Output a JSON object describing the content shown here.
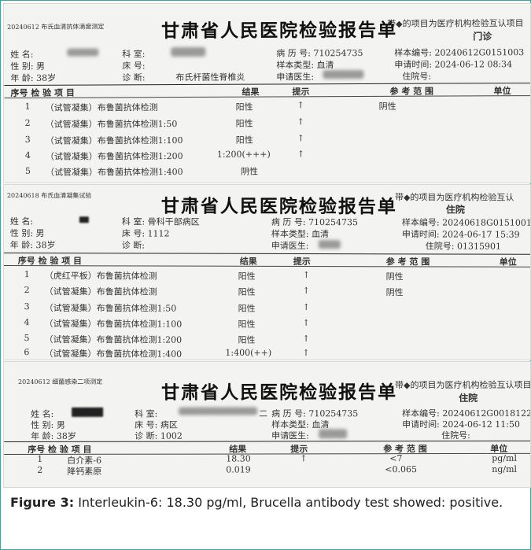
{
  "reports": [
    {
      "code": "20240612 布氏血清抗体滴度测定",
      "hospital": "甘肃省人民医院检验报告单",
      "note": "带◆的项目为医疗机构检验互认项目",
      "dept_type": "门诊",
      "name_label": "姓 名:",
      "gender_label": "性 别: 男",
      "age_label": "年 龄: 38岁",
      "room_label": "科 室:",
      "bed_label": "床 号:",
      "diag_label": "诊 断:",
      "diag_value": "布氏杆菌性脊椎炎",
      "record_label": "病 历 号: 710254735",
      "sample_type": "样本类型: 血清",
      "doctor_label": "申请医生:",
      "sample_no": "样本编号: 20240612G0151003",
      "apply_time": "申请时间: 2024-06-12 08:34",
      "inpatient_no": "住院号:",
      "headers": {
        "no_item": "序号 检 验 项 目",
        "result": "结果",
        "hint": "提示",
        "ref": "参 考 范 围",
        "unit": "单位"
      },
      "rows": [
        {
          "no": "1",
          "item": "（试管凝集）布鲁菌抗体检测",
          "result": "阳性",
          "hint": "↑",
          "ref": "阴性"
        },
        {
          "no": "2",
          "item": "（试管凝集）布鲁菌抗体检测1:50",
          "result": "阳性",
          "hint": "↑",
          "ref": ""
        },
        {
          "no": "3",
          "item": "（试管凝集）布鲁菌抗体检测1:100",
          "result": "阳性",
          "hint": "↑",
          "ref": ""
        },
        {
          "no": "4",
          "item": "（试管凝集）布鲁菌抗体检测1:200",
          "result": "1:200(+++)",
          "hint": "↑",
          "ref": ""
        },
        {
          "no": "5",
          "item": "（试管凝集）布鲁菌抗体检测1:400",
          "result": "阴性",
          "hint": "",
          "ref": ""
        }
      ]
    },
    {
      "code": "20240618 布氏血清凝集试验",
      "hospital": "甘肃省人民医院检验报告单",
      "note": "带◆的项目为医疗机构检验互认",
      "dept_type": "住院",
      "name_label": "姓 名:",
      "gender_label": "性 别: 男",
      "age_label": "年 龄: 38岁",
      "room_label": "科 室: 骨科干部病区",
      "bed_label": "床 号: 1112",
      "diag_label": "诊 断:",
      "record_label": "病 历 号: 710254735",
      "sample_type": "样本类型: 血清",
      "doctor_label": "申请医生:",
      "sample_no": "样本编号: 20240618G0151001",
      "apply_time": "申请时间: 2024-06-17 15:39",
      "inpatient_no": "住院号: 01315901",
      "headers": {
        "no_item": "序号 检 验 项 目",
        "result": "结果",
        "hint": "提示",
        "ref": "参 考 范 围",
        "unit": "单位"
      },
      "rows": [
        {
          "no": "1",
          "item": "（虎红平板）布鲁菌抗体检测",
          "result": "阳性",
          "hint": "↑",
          "ref": "阴性"
        },
        {
          "no": "2",
          "item": "（试管凝集）布鲁菌抗体检测",
          "result": "阳性",
          "hint": "↑",
          "ref": "阴性"
        },
        {
          "no": "3",
          "item": "（试管凝集）布鲁菌抗体检测1:50",
          "result": "阳性",
          "hint": "↑",
          "ref": ""
        },
        {
          "no": "4",
          "item": "（试管凝集）布鲁菌抗体检测1:100",
          "result": "阳性",
          "hint": "↑",
          "ref": ""
        },
        {
          "no": "5",
          "item": "（试管凝集）布鲁菌抗体检测1:200",
          "result": "阳性",
          "hint": "↑",
          "ref": ""
        },
        {
          "no": "6",
          "item": "（试管凝集）布鲁菌抗体检测1:400",
          "result": "1:400(++)",
          "hint": "↑",
          "ref": ""
        }
      ]
    },
    {
      "code": "20240612 细菌感染二项测定",
      "hospital": "甘肃省人民医院检验报告单",
      "note": "带◆的项目为医疗机构检验互认项目",
      "dept_type": "住院",
      "name_label": "姓 名:",
      "gender_label": "性 别: 男",
      "age_label": "年 龄: 38岁",
      "room_label": "科 室:",
      "room_suffix": "二",
      "bed_label": "床 号: 病区",
      "diag_label": "诊 断: 1002",
      "record_label": "病 历 号: 710254735",
      "sample_type": "样本类型: 血清",
      "doctor_label": "申请医生:",
      "sample_no": "样本编号: 20240612G0018122",
      "apply_time": "申请时间: 2024-06-12 11:50",
      "inpatient_no": "住院号:",
      "headers": {
        "no_item": "序号 检 验 项 目",
        "result": "结果",
        "hint": "提示",
        "ref": "参 考 范 围",
        "unit": "单位"
      },
      "rows": [
        {
          "no": "1",
          "item": "白介素-6",
          "result": "18.30",
          "hint": "↑",
          "ref": "<7",
          "unit": "pg/ml"
        },
        {
          "no": "2",
          "item": "降钙素原",
          "result": "0.019",
          "hint": "",
          "ref": "<0.065",
          "unit": "ng/ml"
        }
      ]
    }
  ],
  "caption": {
    "label": "Figure 3:",
    "text": " Interleukin-6: 18.30 pg/ml, Brucella antibody test showed: positive."
  },
  "colors": {
    "frame": "#3aa6a0"
  }
}
